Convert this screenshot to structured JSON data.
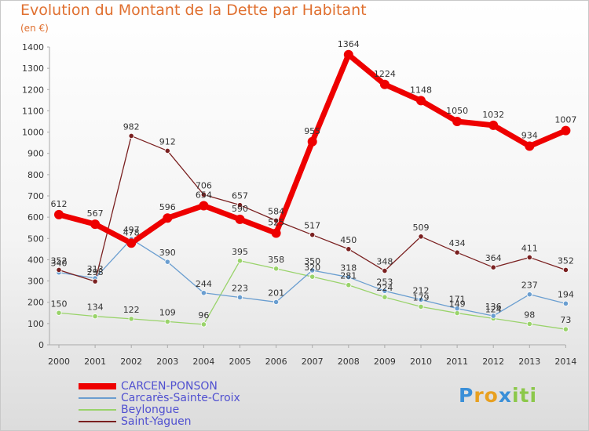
{
  "title": "Evolution du Montant de la Dette par Habitant",
  "subtitle": "(en €)",
  "brand": {
    "p": "P",
    "ro": "ro",
    "x": "x",
    "iti": "iti"
  },
  "chart_data": {
    "type": "line",
    "x": [
      "2000",
      "2001",
      "2002",
      "2003",
      "2004",
      "2005",
      "2006",
      "2007",
      "2008",
      "2009",
      "2010",
      "2011",
      "2012",
      "2013",
      "2014"
    ],
    "ylim": [
      0,
      1400
    ],
    "yticks": [
      0,
      100,
      200,
      300,
      400,
      500,
      600,
      700,
      800,
      900,
      1000,
      1100,
      1200,
      1300,
      1400
    ],
    "grid": false,
    "legend_position": "bottom-left",
    "series": [
      {
        "name": "CARCEN-PONSON",
        "color": "#ee0000",
        "values": [
          612,
          567,
          478,
          596,
          654,
          590,
          525,
          955,
          1364,
          1224,
          1148,
          1050,
          1032,
          934,
          1007
        ]
      },
      {
        "name": "Carcarès-Sainte-Croix",
        "color": "#6a9ed0",
        "values": [
          340,
          313,
          497,
          390,
          244,
          223,
          201,
          350,
          318,
          253,
          212,
          171,
          136,
          237,
          194
        ]
      },
      {
        "name": "Beylongue",
        "color": "#99d36a",
        "values": [
          150,
          134,
          122,
          109,
          96,
          395,
          358,
          320,
          281,
          224,
          179,
          149,
          124,
          98,
          73
        ]
      },
      {
        "name": "Saint-Yaguen",
        "color": "#7a2020",
        "values": [
          352,
          298,
          982,
          912,
          706,
          657,
          584,
          517,
          450,
          348,
          509,
          434,
          364,
          411,
          352
        ]
      }
    ]
  }
}
